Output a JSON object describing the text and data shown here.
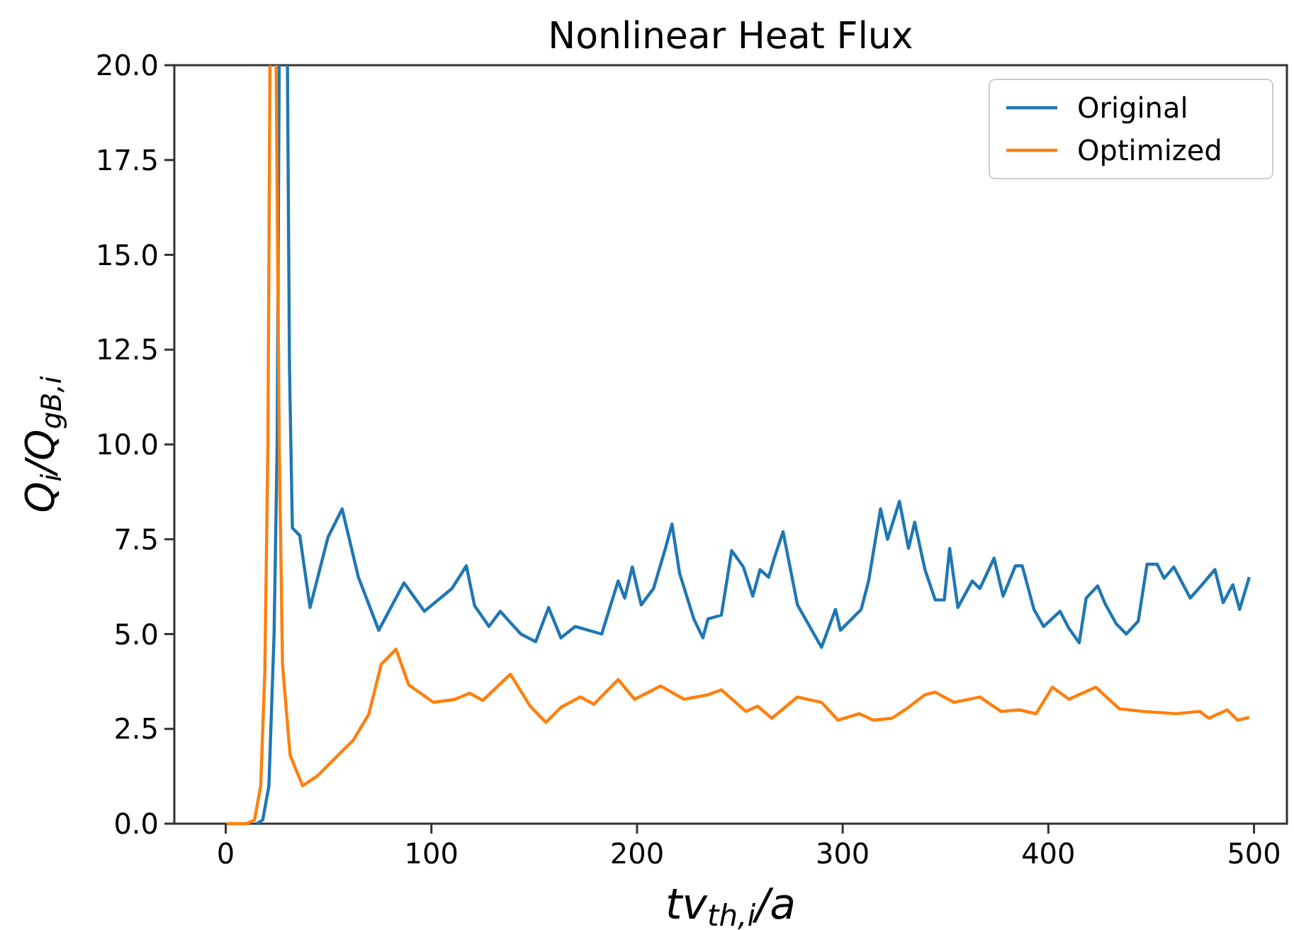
{
  "chart_data": {
    "type": "line",
    "title": "Nonlinear Heat Flux",
    "xlabel": "tv$_{th,i}$/a",
    "ylabel": "Q$_{i}$/Q$_{gB,i}$",
    "xlim": [
      -25,
      516
    ],
    "ylim": [
      0,
      20
    ],
    "xticks": [
      0,
      100,
      200,
      300,
      400,
      500
    ],
    "yticks": [
      {
        "value": 0,
        "label": "0.0"
      },
      {
        "value": 2.5,
        "label": "2.5"
      },
      {
        "value": 5,
        "label": "5.0"
      },
      {
        "value": 7.5,
        "label": "7.5"
      },
      {
        "value": 10,
        "label": "10.0"
      },
      {
        "value": 12.5,
        "label": "12.5"
      },
      {
        "value": 15,
        "label": "15.0"
      },
      {
        "value": 17.5,
        "label": "17.5"
      },
      {
        "value": 20,
        "label": "20.0"
      }
    ],
    "grid": false,
    "legend": "top right",
    "marker": "none",
    "line_style": "solid",
    "series": [
      {
        "name": "Original",
        "color": "#1f77b4",
        "x": [
          15,
          18,
          21,
          23.5,
          25,
          26,
          28,
          30,
          31,
          32.4,
          36,
          41,
          49.7,
          56.6,
          64.5,
          74.4,
          86.7,
          96.6,
          110,
          117,
          121,
          128,
          133.5,
          143.5,
          150.7,
          157,
          163,
          170,
          182.8,
          190.8,
          194,
          197.7,
          202,
          208,
          213.8,
          217,
          220.7,
          227.6,
          232,
          234.5,
          241,
          246,
          251.7,
          256.3,
          259.8,
          264,
          266.7,
          271,
          278,
          289.7,
          296.5,
          298.9,
          309,
          312.6,
          318.4,
          321.8,
          327.6,
          332,
          335,
          340,
          345,
          349.4,
          352,
          356,
          363,
          366.7,
          373.6,
          378,
          384,
          387.3,
          393,
          397.7,
          405.7,
          410,
          415,
          418.4,
          424,
          427.6,
          433,
          437.9,
          443.7,
          448,
          452.9,
          456.3,
          461,
          469,
          474.7,
          481,
          485,
          489.7,
          493,
          497.7
        ],
        "values": [
          0,
          0.1,
          1,
          5,
          10,
          20,
          null,
          20,
          12,
          7.8,
          7.6,
          5.7,
          7.55,
          8.3,
          6.5,
          5.1,
          6.35,
          5.6,
          6.2,
          6.8,
          5.75,
          5.2,
          5.6,
          5.0,
          4.8,
          5.7,
          4.9,
          5.2,
          5.0,
          6.4,
          5.95,
          6.77,
          5.77,
          6.2,
          7.26,
          7.9,
          6.6,
          5.4,
          4.9,
          5.4,
          5.5,
          7.2,
          6.77,
          6.0,
          6.7,
          6.5,
          7.0,
          7.7,
          5.77,
          4.65,
          5.65,
          5.1,
          5.65,
          6.4,
          8.3,
          7.5,
          8.5,
          7.26,
          7.95,
          6.7,
          5.9,
          5.9,
          7.26,
          5.7,
          6.4,
          6.2,
          7.0,
          6.0,
          6.8,
          6.8,
          5.65,
          5.2,
          5.6,
          5.15,
          4.77,
          5.95,
          6.27,
          5.8,
          5.27,
          5.0,
          5.34,
          6.84,
          6.84,
          6.47,
          6.77,
          5.95,
          6.3,
          6.7,
          5.83,
          6.3,
          5.65,
          6.5
        ]
      },
      {
        "name": "Optimized",
        "color": "#ff7f0e",
        "x": [
          0,
          10,
          14,
          17,
          19,
          20.5,
          21.5,
          23,
          24.5,
          26,
          27.6,
          31.3,
          37.4,
          44.8,
          54.5,
          62,
          69.5,
          75.6,
          82.8,
          89,
          101,
          111,
          118.6,
          125,
          138.4,
          148,
          155.7,
          163,
          172.4,
          179,
          190.8,
          198.8,
          211.5,
          222.9,
          234.5,
          241,
          252.9,
          258.6,
          265.5,
          278,
          289.7,
          297.7,
          308,
          314.9,
          324,
          331,
          340,
          345,
          354,
          366.7,
          377,
          386,
          394,
          402,
          410,
          423,
          434.5,
          446,
          462,
          473.6,
          478,
          487,
          492,
          497.7
        ],
        "values": [
          0,
          0,
          0.1,
          1,
          4,
          10,
          20,
          null,
          20,
          10,
          4.2,
          1.8,
          1.0,
          1.27,
          1.8,
          2.2,
          2.88,
          4.2,
          4.6,
          3.66,
          3.2,
          3.27,
          3.44,
          3.25,
          3.94,
          3.1,
          2.67,
          3.07,
          3.34,
          3.15,
          3.8,
          3.28,
          3.63,
          3.28,
          3.4,
          3.53,
          2.96,
          3.1,
          2.78,
          3.34,
          3.2,
          2.73,
          2.9,
          2.73,
          2.78,
          3.03,
          3.4,
          3.47,
          3.2,
          3.34,
          2.96,
          3.0,
          2.9,
          3.6,
          3.28,
          3.6,
          3.03,
          2.96,
          2.9,
          2.96,
          2.78,
          3.0,
          2.73,
          2.8
        ]
      }
    ]
  }
}
